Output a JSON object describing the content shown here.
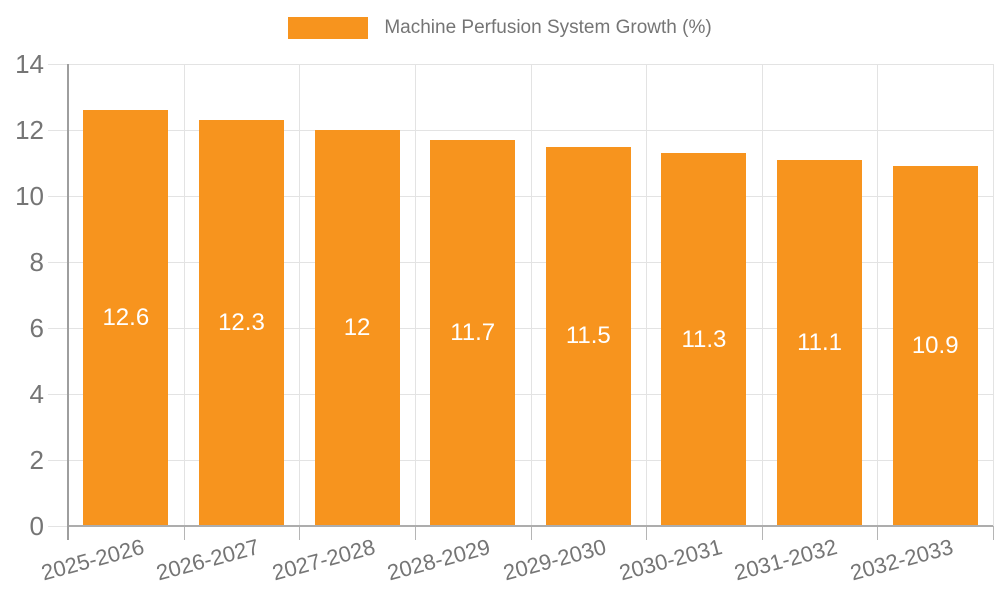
{
  "legend": {
    "label": "Machine Perfusion System Growth (%)"
  },
  "chart_data": {
    "type": "bar",
    "title": "",
    "xlabel": "",
    "ylabel": "",
    "categories": [
      "2025-2026",
      "2026-2027",
      "2027-2028",
      "2028-2029",
      "2029-2030",
      "2030-2031",
      "2031-2032",
      "2032-2033"
    ],
    "series": [
      {
        "name": "Machine Perfusion System Growth (%)",
        "values": [
          12.6,
          12.3,
          12,
          11.7,
          11.5,
          11.3,
          11.1,
          10.9
        ],
        "value_labels": [
          "12.6",
          "12.3",
          "12",
          "11.7",
          "11.5",
          "11.3",
          "11.1",
          "10.9"
        ],
        "color": "#F7941E"
      }
    ],
    "ylim": [
      0,
      14
    ],
    "yticks": [
      0,
      2,
      4,
      6,
      8,
      10,
      12,
      14
    ],
    "grid": true,
    "legend_position": "top-center",
    "x_label_rotation_deg": -15
  },
  "colors": {
    "bar": "#F7941E",
    "gridline": "#e3e3e3",
    "baseline": "#adadad",
    "axis_line": "#9e9e9e",
    "tick_text": "#757575",
    "value_label_text": "#ffffff",
    "background": "#ffffff"
  }
}
